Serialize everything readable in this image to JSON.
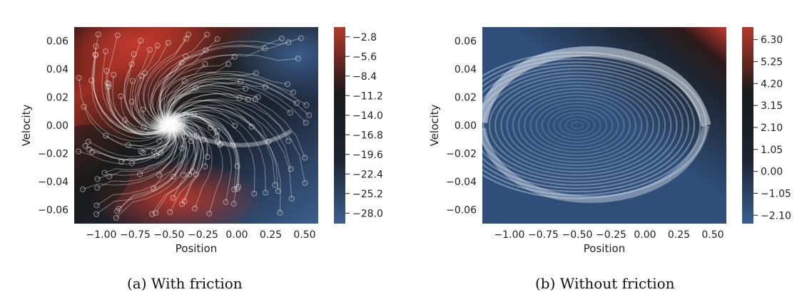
{
  "chart_data": [
    {
      "type": "heatmap",
      "panel": "a",
      "caption": "(a) With friction",
      "xlabel": "Position",
      "ylabel": "Velocity",
      "xlim": [
        -1.2,
        0.6
      ],
      "ylim": [
        -0.07,
        0.07
      ],
      "x_ticks": [
        -1.0,
        -0.75,
        -0.5,
        -0.25,
        0.0,
        0.25,
        0.5
      ],
      "x_tick_labels": [
        "−1.00",
        "−0.75",
        "−0.50",
        "−0.25",
        "0.00",
        "0.25",
        "0.50"
      ],
      "y_ticks": [
        0.06,
        0.04,
        0.02,
        0.0,
        -0.02,
        -0.04,
        -0.06
      ],
      "y_tick_labels": [
        "0.06",
        "0.04",
        "0.02",
        "0.00",
        "−0.02",
        "−0.04",
        "−0.06"
      ],
      "colorbar": {
        "ticks": [
          -2.8,
          -5.6,
          -8.4,
          -11.2,
          -14.0,
          -16.8,
          -19.6,
          -22.4,
          -25.2,
          -28.0
        ],
        "tick_labels": [
          "−2.8",
          "−5.6",
          "−8.4",
          "−11.2",
          "−14.0",
          "−16.8",
          "−19.6",
          "−22.4",
          "−25.2",
          "−28.0"
        ],
        "range": [
          -29.5,
          -1.4
        ],
        "colors": [
          "#3b5f8f",
          "#1c2330",
          "#1a1a1a",
          "#b5392c"
        ]
      },
      "overlay": "trajectories converging to a spiral sink near (-0.5, 0.0)",
      "grid": false
    },
    {
      "type": "heatmap",
      "panel": "b",
      "caption": "(b) Without friction",
      "xlabel": "Position",
      "ylabel": "Velocity",
      "xlim": [
        -1.2,
        0.6
      ],
      "ylim": [
        -0.07,
        0.07
      ],
      "x_ticks": [
        -1.0,
        -0.75,
        -0.5,
        -0.25,
        0.0,
        0.25,
        0.5
      ],
      "x_tick_labels": [
        "−1.00",
        "−0.75",
        "−0.50",
        "−0.25",
        "0.00",
        "0.25",
        "0.50"
      ],
      "y_ticks": [
        0.06,
        0.04,
        0.02,
        0.0,
        -0.02,
        -0.04,
        -0.06
      ],
      "y_tick_labels": [
        "0.06",
        "0.04",
        "0.02",
        "0.00",
        "−0.02",
        "−0.04",
        "−0.06"
      ],
      "colorbar": {
        "ticks": [
          6.3,
          5.25,
          4.2,
          3.15,
          2.1,
          1.05,
          0.0,
          -1.05,
          -2.1
        ],
        "tick_labels": [
          "6.30",
          "5.25",
          "4.20",
          "3.15",
          "2.10",
          "1.05",
          "0.00",
          "−1.05",
          "−2.10"
        ],
        "range": [
          -2.5,
          6.9
        ],
        "colors": [
          "#3b5f8f",
          "#1c2330",
          "#1a1a1a",
          "#b5392c"
        ]
      },
      "overlay": "closed elliptical orbits around center (-0.5, 0.0)",
      "grid": false
    }
  ]
}
